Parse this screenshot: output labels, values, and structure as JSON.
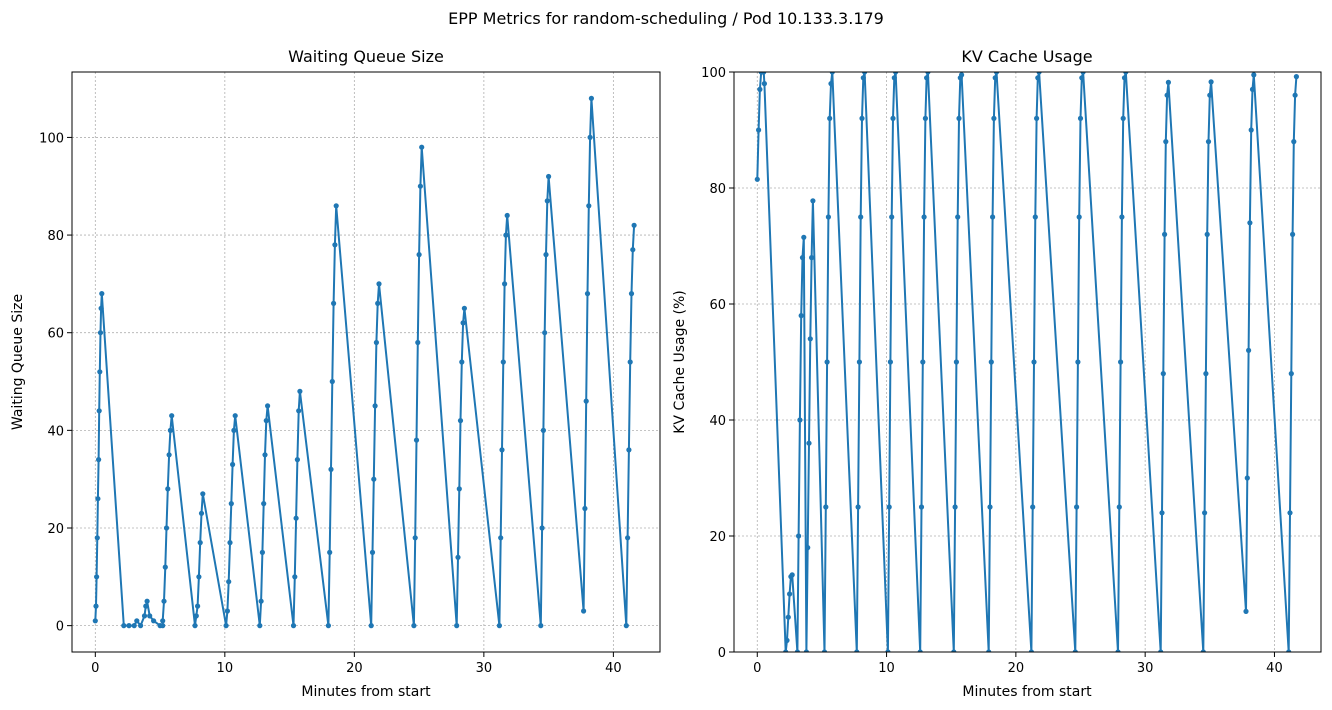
{
  "figure": {
    "suptitle": "EPP Metrics for random-scheduling / Pod 10.133.3.179"
  },
  "colors": {
    "series": "#1f77b4",
    "grid": "#b0b0b0",
    "axis": "#000000"
  },
  "chart_data": [
    {
      "type": "line",
      "title": "Waiting Queue Size",
      "xlabel": "Minutes from start",
      "ylabel": "Waiting Queue Size",
      "xlim": [
        -1.8,
        43.6
      ],
      "ylim": [
        -5.4,
        113.4
      ],
      "xticks": [
        0,
        10,
        20,
        30,
        40
      ],
      "yticks": [
        0,
        20,
        40,
        60,
        80,
        100
      ],
      "grid": true,
      "marker": "circle",
      "series": [
        {
          "points": [
            [
              0.0,
              1
            ],
            [
              0.05,
              4
            ],
            [
              0.1,
              10
            ],
            [
              0.15,
              18
            ],
            [
              0.2,
              26
            ],
            [
              0.25,
              34
            ],
            [
              0.3,
              44
            ],
            [
              0.35,
              52
            ],
            [
              0.4,
              60
            ],
            [
              0.45,
              65
            ],
            [
              0.5,
              68
            ],
            [
              2.2,
              0
            ],
            [
              2.6,
              0
            ],
            [
              3.0,
              0
            ],
            [
              3.2,
              1
            ],
            [
              3.5,
              0
            ],
            [
              3.8,
              2
            ],
            [
              3.9,
              4
            ],
            [
              4.0,
              5
            ],
            [
              4.2,
              2
            ],
            [
              4.5,
              1
            ],
            [
              5.0,
              0
            ],
            [
              5.2,
              0
            ],
            [
              5.2,
              1
            ],
            [
              5.3,
              5
            ],
            [
              5.4,
              12
            ],
            [
              5.5,
              20
            ],
            [
              5.6,
              28
            ],
            [
              5.7,
              35
            ],
            [
              5.8,
              40
            ],
            [
              5.9,
              43
            ],
            [
              7.7,
              0
            ],
            [
              7.8,
              2
            ],
            [
              7.9,
              4
            ],
            [
              8.0,
              10
            ],
            [
              8.1,
              17
            ],
            [
              8.2,
              23
            ],
            [
              8.3,
              27
            ],
            [
              10.1,
              0
            ],
            [
              10.2,
              3
            ],
            [
              10.3,
              9
            ],
            [
              10.4,
              17
            ],
            [
              10.5,
              25
            ],
            [
              10.6,
              33
            ],
            [
              10.7,
              40
            ],
            [
              10.8,
              43
            ],
            [
              12.7,
              0
            ],
            [
              12.8,
              5
            ],
            [
              12.9,
              15
            ],
            [
              13.0,
              25
            ],
            [
              13.1,
              35
            ],
            [
              13.2,
              42
            ],
            [
              13.3,
              45
            ],
            [
              15.3,
              0
            ],
            [
              15.4,
              10
            ],
            [
              15.5,
              22
            ],
            [
              15.6,
              34
            ],
            [
              15.7,
              44
            ],
            [
              15.8,
              48
            ],
            [
              18.0,
              0
            ],
            [
              18.1,
              15
            ],
            [
              18.2,
              32
            ],
            [
              18.3,
              50
            ],
            [
              18.4,
              66
            ],
            [
              18.5,
              78
            ],
            [
              18.6,
              86
            ],
            [
              21.3,
              0
            ],
            [
              21.4,
              15
            ],
            [
              21.5,
              30
            ],
            [
              21.6,
              45
            ],
            [
              21.7,
              58
            ],
            [
              21.8,
              66
            ],
            [
              21.9,
              70
            ],
            [
              24.6,
              0
            ],
            [
              24.7,
              18
            ],
            [
              24.8,
              38
            ],
            [
              24.9,
              58
            ],
            [
              25.0,
              76
            ],
            [
              25.1,
              90
            ],
            [
              25.2,
              98
            ],
            [
              27.9,
              0
            ],
            [
              28.0,
              14
            ],
            [
              28.1,
              28
            ],
            [
              28.2,
              42
            ],
            [
              28.3,
              54
            ],
            [
              28.4,
              62
            ],
            [
              28.5,
              65
            ],
            [
              31.2,
              0
            ],
            [
              31.3,
              18
            ],
            [
              31.4,
              36
            ],
            [
              31.5,
              54
            ],
            [
              31.6,
              70
            ],
            [
              31.7,
              80
            ],
            [
              31.8,
              84
            ],
            [
              34.4,
              0
            ],
            [
              34.5,
              20
            ],
            [
              34.6,
              40
            ],
            [
              34.7,
              60
            ],
            [
              34.8,
              76
            ],
            [
              34.9,
              87
            ],
            [
              35.0,
              92
            ],
            [
              37.7,
              3
            ],
            [
              37.8,
              24
            ],
            [
              37.9,
              46
            ],
            [
              38.0,
              68
            ],
            [
              38.1,
              86
            ],
            [
              38.2,
              100
            ],
            [
              38.3,
              108
            ],
            [
              41.0,
              0
            ],
            [
              41.1,
              18
            ],
            [
              41.2,
              36
            ],
            [
              41.3,
              54
            ],
            [
              41.4,
              68
            ],
            [
              41.5,
              77
            ],
            [
              41.6,
              82
            ]
          ]
        }
      ]
    },
    {
      "type": "line",
      "title": "KV Cache Usage",
      "xlabel": "Minutes from start",
      "ylabel": "KV Cache Usage (%)",
      "xlim": [
        -1.8,
        43.6
      ],
      "ylim": [
        0,
        100
      ],
      "xticks": [
        0,
        10,
        20,
        30,
        40
      ],
      "yticks": [
        0,
        20,
        40,
        60,
        80,
        100
      ],
      "grid": true,
      "marker": "circle",
      "series": [
        {
          "points": [
            [
              0.0,
              81.5
            ],
            [
              0.1,
              90
            ],
            [
              0.2,
              97
            ],
            [
              0.3,
              100
            ],
            [
              0.4,
              100
            ],
            [
              0.5,
              100
            ],
            [
              0.55,
              98
            ],
            [
              2.2,
              0
            ],
            [
              2.3,
              2
            ],
            [
              2.4,
              6
            ],
            [
              2.5,
              10
            ],
            [
              2.6,
              13
            ],
            [
              2.7,
              13.3
            ],
            [
              3.1,
              0
            ],
            [
              3.2,
              20
            ],
            [
              3.3,
              40
            ],
            [
              3.4,
              58
            ],
            [
              3.5,
              68
            ],
            [
              3.6,
              71.5
            ],
            [
              3.8,
              0
            ],
            [
              3.9,
              18
            ],
            [
              4.0,
              36
            ],
            [
              4.1,
              54
            ],
            [
              4.2,
              68
            ],
            [
              4.3,
              77.8
            ],
            [
              5.2,
              0
            ],
            [
              5.3,
              25
            ],
            [
              5.4,
              50
            ],
            [
              5.5,
              75
            ],
            [
              5.6,
              92
            ],
            [
              5.7,
              98
            ],
            [
              5.8,
              100
            ],
            [
              7.7,
              0
            ],
            [
              7.8,
              25
            ],
            [
              7.9,
              50
            ],
            [
              8.0,
              75
            ],
            [
              8.1,
              92
            ],
            [
              8.2,
              99
            ],
            [
              8.3,
              100
            ],
            [
              10.1,
              0
            ],
            [
              10.2,
              25
            ],
            [
              10.3,
              50
            ],
            [
              10.4,
              75
            ],
            [
              10.5,
              92
            ],
            [
              10.6,
              99
            ],
            [
              10.7,
              100
            ],
            [
              12.6,
              0
            ],
            [
              12.7,
              25
            ],
            [
              12.8,
              50
            ],
            [
              12.9,
              75
            ],
            [
              13.0,
              92
            ],
            [
              13.1,
              99
            ],
            [
              13.2,
              100
            ],
            [
              15.2,
              0
            ],
            [
              15.3,
              25
            ],
            [
              15.4,
              50
            ],
            [
              15.5,
              75
            ],
            [
              15.6,
              92
            ],
            [
              15.7,
              99
            ],
            [
              15.8,
              99.5
            ],
            [
              17.9,
              0
            ],
            [
              18.0,
              25
            ],
            [
              18.1,
              50
            ],
            [
              18.2,
              75
            ],
            [
              18.3,
              92
            ],
            [
              18.4,
              99
            ],
            [
              18.5,
              100
            ],
            [
              21.2,
              0
            ],
            [
              21.3,
              25
            ],
            [
              21.4,
              50
            ],
            [
              21.5,
              75
            ],
            [
              21.6,
              92
            ],
            [
              21.7,
              99
            ],
            [
              21.8,
              100
            ],
            [
              24.6,
              0
            ],
            [
              24.7,
              25
            ],
            [
              24.8,
              50
            ],
            [
              24.9,
              75
            ],
            [
              25.0,
              92
            ],
            [
              25.1,
              99
            ],
            [
              25.2,
              100
            ],
            [
              27.9,
              0
            ],
            [
              28.0,
              25
            ],
            [
              28.1,
              50
            ],
            [
              28.2,
              75
            ],
            [
              28.3,
              92
            ],
            [
              28.4,
              99
            ],
            [
              28.5,
              100
            ],
            [
              31.2,
              0
            ],
            [
              31.3,
              24
            ],
            [
              31.4,
              48
            ],
            [
              31.5,
              72
            ],
            [
              31.6,
              88
            ],
            [
              31.7,
              96
            ],
            [
              31.8,
              98.2
            ],
            [
              34.5,
              0
            ],
            [
              34.6,
              24
            ],
            [
              34.7,
              48
            ],
            [
              34.8,
              72
            ],
            [
              34.9,
              88
            ],
            [
              35.0,
              96
            ],
            [
              35.1,
              98.3
            ],
            [
              37.8,
              7
            ],
            [
              37.9,
              30
            ],
            [
              38.0,
              52
            ],
            [
              38.1,
              74
            ],
            [
              38.2,
              90
            ],
            [
              38.3,
              97
            ],
            [
              38.4,
              99.5
            ],
            [
              41.1,
              0
            ],
            [
              41.2,
              24
            ],
            [
              41.3,
              48
            ],
            [
              41.4,
              72
            ],
            [
              41.5,
              88
            ],
            [
              41.6,
              96
            ],
            [
              41.7,
              99.2
            ]
          ]
        }
      ]
    }
  ]
}
